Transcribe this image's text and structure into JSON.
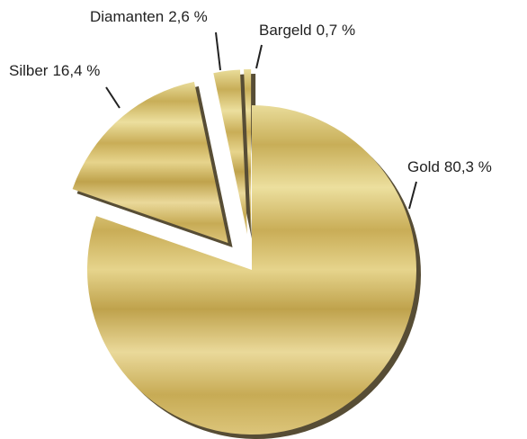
{
  "chart_data": {
    "type": "pie",
    "categories": [
      "Gold",
      "Silber",
      "Diamanten",
      "Bargeld"
    ],
    "values": [
      80.3,
      16.4,
      2.6,
      0.7
    ],
    "value_labels": [
      "80,3 %",
      "16,4 %",
      "2,6 %",
      "0,7 %"
    ]
  }
}
